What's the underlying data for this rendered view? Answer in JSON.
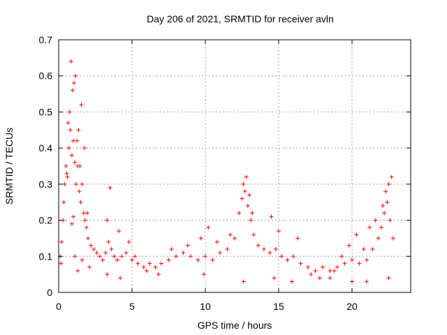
{
  "chart_data": {
    "type": "scatter",
    "title": "Day 206 of 2021, SRMTID for receiver avln",
    "xlabel": "GPS time / hours",
    "ylabel": "SRMTID / TECUs",
    "xlim": [
      0,
      24
    ],
    "ylim": [
      0,
      0.7
    ],
    "xticks": [
      0,
      5,
      10,
      15,
      20
    ],
    "yticks": [
      0,
      0.1,
      0.2,
      0.3,
      0.4,
      0.5,
      0.6,
      0.7
    ],
    "grid": true,
    "marker": "+",
    "color": "#ff0000",
    "series": [
      {
        "name": "SRMTID",
        "x": [
          0.1,
          0.2,
          0.3,
          0.4,
          0.5,
          0.6,
          0.7,
          0.8,
          0.9,
          1.0,
          1.1,
          1.2,
          1.3,
          1.4,
          1.5,
          1.6,
          1.7,
          1.8,
          1.9,
          2.0,
          2.2,
          2.4,
          2.6,
          2.8,
          3.0,
          3.2,
          3.4,
          3.6,
          3.8,
          4.0,
          4.3,
          4.6,
          5.0,
          5.4,
          5.8,
          6.2,
          6.6,
          7.0,
          7.5,
          8.0,
          8.5,
          9.0,
          9.5,
          10.0,
          10.5,
          11.0,
          11.5,
          12.0,
          12.3,
          12.5,
          12.7,
          12.9,
          13.1,
          13.3,
          13.6,
          14.0,
          14.4,
          14.8,
          15.2,
          15.6,
          16.0,
          16.5,
          17.0,
          17.5,
          18.0,
          18.5,
          19.0,
          19.5,
          20.0,
          20.5,
          21.0,
          21.4,
          21.8,
          22.0,
          22.2,
          22.4,
          22.6,
          22.8,
          0.15,
          0.35,
          0.55,
          0.75,
          0.95,
          1.15,
          1.35,
          1.55,
          1.75,
          1.95,
          0.85,
          1.05,
          1.25,
          0.65,
          1.45,
          3.3,
          3.5,
          4.1,
          4.8,
          5.2,
          6.0,
          6.8,
          7.7,
          8.8,
          9.7,
          10.2,
          10.8,
          11.7,
          12.6,
          12.8,
          13.0,
          13.2,
          14.5,
          15.0,
          16.3,
          17.2,
          17.8,
          18.8,
          19.3,
          19.8,
          20.3,
          20.8,
          21.2,
          21.6,
          22.1,
          22.3,
          22.5,
          22.7,
          0.9,
          1.0,
          1.1,
          1.3,
          1.6,
          2.1,
          3.3,
          4.2,
          9.9,
          12.6,
          14.7,
          15.9,
          18.5,
          20.0,
          21.0,
          22.5
        ],
        "y": [
          0.1,
          0.14,
          0.2,
          0.3,
          0.35,
          0.32,
          0.4,
          0.45,
          0.38,
          0.42,
          0.36,
          0.3,
          0.35,
          0.28,
          0.25,
          0.3,
          0.22,
          0.2,
          0.18,
          0.15,
          0.13,
          0.12,
          0.11,
          0.1,
          0.09,
          0.11,
          0.14,
          0.12,
          0.1,
          0.09,
          0.1,
          0.11,
          0.09,
          0.08,
          0.07,
          0.08,
          0.07,
          0.08,
          0.09,
          0.1,
          0.11,
          0.1,
          0.09,
          0.1,
          0.09,
          0.11,
          0.12,
          0.15,
          0.22,
          0.26,
          0.28,
          0.24,
          0.2,
          0.16,
          0.13,
          0.12,
          0.11,
          0.12,
          0.1,
          0.09,
          0.1,
          0.08,
          0.07,
          0.06,
          0.07,
          0.06,
          0.07,
          0.08,
          0.09,
          0.08,
          0.09,
          0.12,
          0.15,
          0.18,
          0.22,
          0.25,
          0.2,
          0.15,
          0.08,
          0.25,
          0.33,
          0.5,
          0.56,
          0.6,
          0.45,
          0.52,
          0.4,
          0.22,
          0.64,
          0.58,
          0.42,
          0.47,
          0.35,
          0.2,
          0.29,
          0.17,
          0.14,
          0.1,
          0.06,
          0.05,
          0.12,
          0.13,
          0.15,
          0.18,
          0.14,
          0.16,
          0.3,
          0.32,
          0.27,
          0.22,
          0.21,
          0.17,
          0.15,
          0.05,
          0.04,
          0.06,
          0.1,
          0.13,
          0.16,
          0.12,
          0.18,
          0.2,
          0.24,
          0.28,
          0.3,
          0.32,
          0.19,
          0.21,
          0.1,
          0.06,
          0.09,
          0.07,
          0.05,
          0.04,
          0.05,
          0.03,
          0.04,
          0.03,
          0.04,
          0.03,
          0.03,
          0.04
        ]
      }
    ]
  }
}
